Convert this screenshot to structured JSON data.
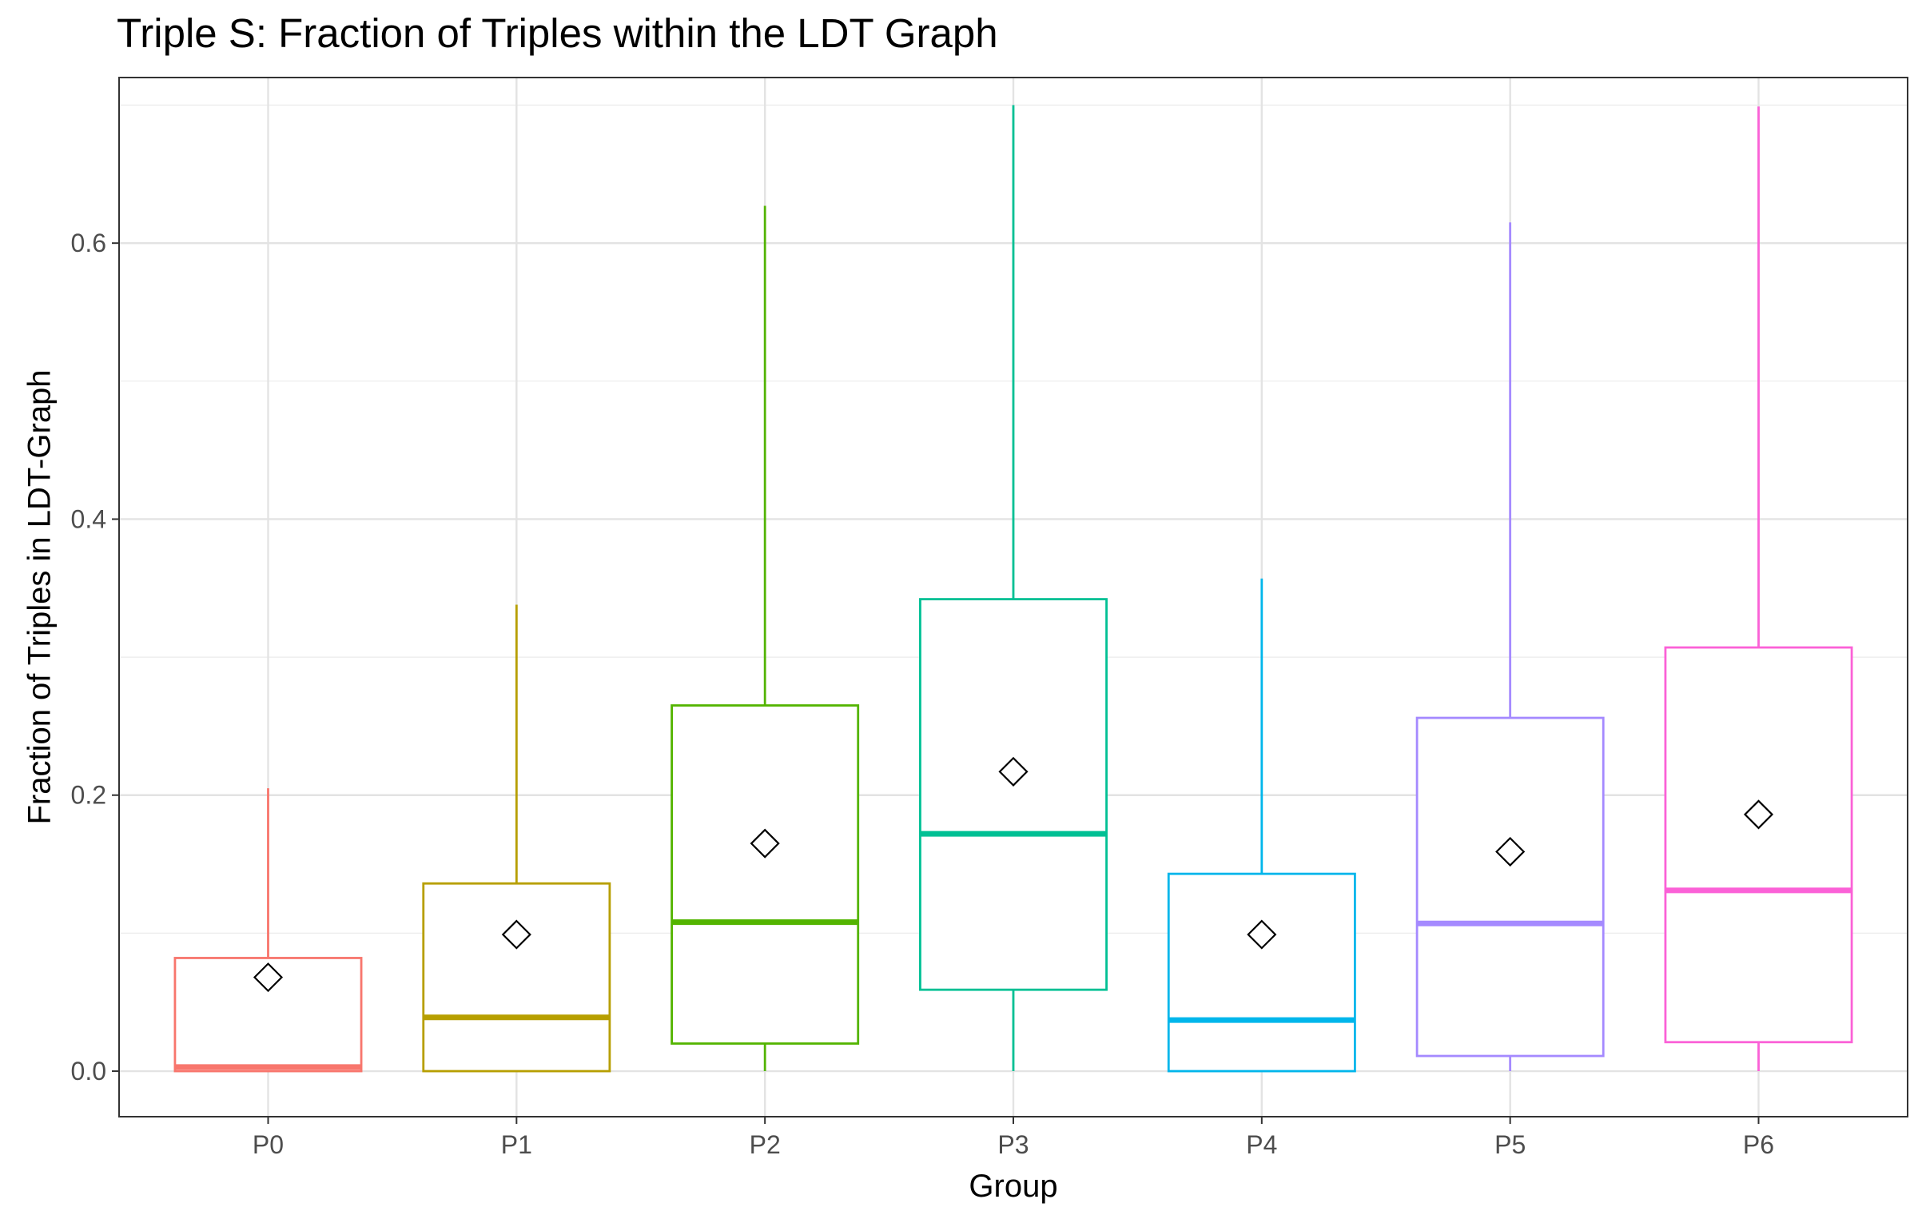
{
  "chart_data": {
    "type": "boxplot",
    "title": "Triple S: Fraction of Triples within the LDT Graph",
    "xlabel": "Group",
    "ylabel": "Fraction of Triples in LDT-Graph",
    "ylim": [
      -0.033,
      0.72
    ],
    "yticks": [
      0.0,
      0.2,
      0.4,
      0.6
    ],
    "ytick_labels": [
      "0.0",
      "0.2",
      "0.4",
      "0.6"
    ],
    "grid": true,
    "mean_marker": "open-diamond",
    "groups": [
      {
        "name": "P0",
        "color": "#F8766D",
        "min": 0.0,
        "q1": 0.0,
        "median": 0.003,
        "q3": 0.082,
        "max": 0.205,
        "mean": 0.068
      },
      {
        "name": "P1",
        "color": "#B79F00",
        "min": 0.0,
        "q1": 0.0,
        "median": 0.039,
        "q3": 0.136,
        "max": 0.338,
        "mean": 0.099
      },
      {
        "name": "P2",
        "color": "#53B400",
        "min": 0.0,
        "q1": 0.02,
        "median": 0.108,
        "q3": 0.265,
        "max": 0.627,
        "mean": 0.165
      },
      {
        "name": "P3",
        "color": "#00C094",
        "min": 0.0,
        "q1": 0.059,
        "median": 0.172,
        "q3": 0.342,
        "max": 0.7,
        "mean": 0.217
      },
      {
        "name": "P4",
        "color": "#00B6EB",
        "min": 0.0,
        "q1": 0.0,
        "median": 0.037,
        "q3": 0.143,
        "max": 0.357,
        "mean": 0.099
      },
      {
        "name": "P5",
        "color": "#A58AFF",
        "min": 0.0,
        "q1": 0.011,
        "median": 0.107,
        "q3": 0.256,
        "max": 0.615,
        "mean": 0.159
      },
      {
        "name": "P6",
        "color": "#FB61D7",
        "min": 0.0,
        "q1": 0.021,
        "median": 0.131,
        "q3": 0.307,
        "max": 0.699,
        "mean": 0.186
      }
    ]
  }
}
